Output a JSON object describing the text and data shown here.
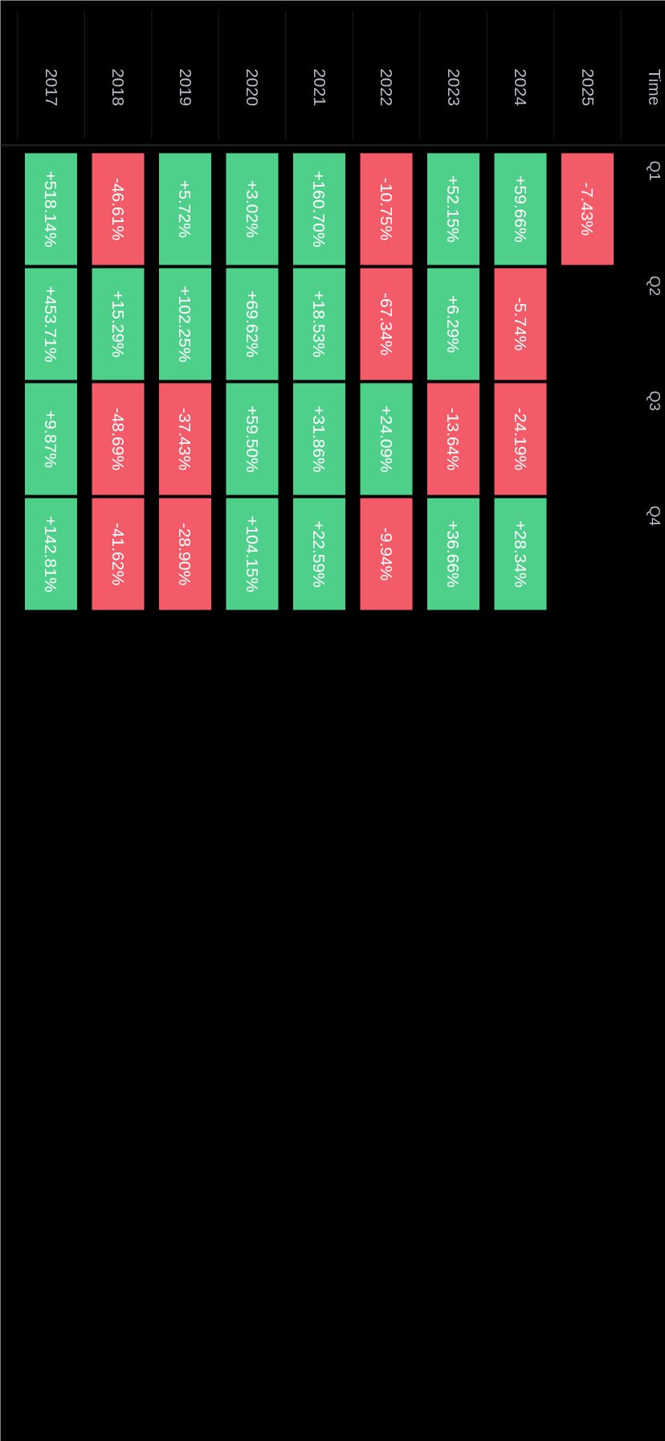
{
  "chart_data": {
    "type": "heatmap",
    "ylabel": "Time",
    "categories": [
      "2017",
      "2018",
      "2019",
      "2020",
      "2021",
      "2022",
      "2023",
      "2024",
      "2025"
    ],
    "y_categories": [
      "Q1",
      "Q2",
      "Q3",
      "Q4"
    ],
    "cells": [
      [
        518.14,
        -46.61,
        5.72,
        3.02,
        160.7,
        -10.75,
        52.15,
        59.66,
        -7.43
      ],
      [
        453.71,
        15.29,
        102.25,
        69.62,
        18.53,
        -67.34,
        6.29,
        -5.74,
        null
      ],
      [
        9.87,
        -48.69,
        -37.43,
        59.5,
        31.86,
        24.09,
        -13.64,
        -24.19,
        null
      ],
      [
        142.81,
        -41.62,
        -28.9,
        104.15,
        22.59,
        -9.94,
        36.66,
        28.34,
        null
      ]
    ],
    "cell_labels": [
      [
        "+518.14%",
        "-46.61%",
        "+5.72%",
        "+3.02%",
        "+160.70%",
        "-10.75%",
        "+52.15%",
        "+59.66%",
        "-7.43%"
      ],
      [
        "+453.71%",
        "+15.29%",
        "+102.25%",
        "+69.62%",
        "+18.53%",
        "-67.34%",
        "+6.29%",
        "-5.74%",
        null
      ],
      [
        "+9.87%",
        "-48.69%",
        "-37.43%",
        "+59.50%",
        "+31.86%",
        "+24.09%",
        "-13.64%",
        "-24.19%",
        null
      ],
      [
        "+142.81%",
        "-41.62%",
        "-28.90%",
        "+104.15%",
        "+22.59%",
        "-9.94%",
        "+36.66%",
        "+28.34%",
        null
      ]
    ],
    "colors": [
      "#f45b69",
      "#4fd08a"
    ]
  }
}
